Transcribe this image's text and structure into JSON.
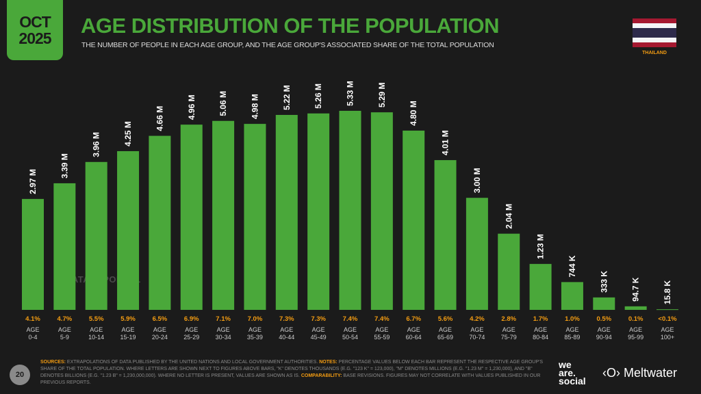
{
  "header": {
    "date_month": "OCT",
    "date_year": "2025",
    "title": "AGE DISTRIBUTION OF THE POPULATION",
    "subtitle": "THE NUMBER OF PEOPLE IN EACH AGE GROUP, AND THE AGE GROUP'S ASSOCIATED SHARE OF THE TOTAL POPULATION",
    "country": "THAILAND",
    "flag_colors": [
      "#a51931",
      "#f4f5f8",
      "#2d2a4a",
      "#f4f5f8",
      "#a51931"
    ]
  },
  "watermark": "DATAREPORTAL",
  "colors": {
    "bar": "#4aa83a",
    "share": "#f39c12",
    "background": "#1b1b1b"
  },
  "chart_data": {
    "type": "bar",
    "categories": [
      "0-4",
      "5-9",
      "10-14",
      "15-19",
      "20-24",
      "25-29",
      "30-34",
      "35-39",
      "40-44",
      "45-49",
      "50-54",
      "55-59",
      "60-64",
      "65-69",
      "70-74",
      "75-79",
      "80-84",
      "85-89",
      "90-94",
      "95-99",
      "100+"
    ],
    "category_prefix": "AGE",
    "values_millions": [
      2.97,
      3.39,
      3.96,
      4.25,
      4.66,
      4.96,
      5.06,
      4.98,
      5.22,
      5.26,
      5.33,
      5.29,
      4.8,
      4.01,
      3.0,
      2.04,
      1.23,
      0.744,
      0.333,
      0.0947,
      0.0158
    ],
    "value_labels": [
      "2.97 M",
      "3.39 M",
      "3.96 M",
      "4.25 M",
      "4.66 M",
      "4.96 M",
      "5.06 M",
      "4.98 M",
      "5.22 M",
      "5.26 M",
      "5.33 M",
      "5.29 M",
      "4.80 M",
      "4.01 M",
      "3.00 M",
      "2.04 M",
      "1.23 M",
      "744 K",
      "333 K",
      "94.7 K",
      "15.8 K"
    ],
    "shares": [
      "4.1%",
      "4.7%",
      "5.5%",
      "5.9%",
      "6.5%",
      "6.9%",
      "7.1%",
      "7.0%",
      "7.3%",
      "7.3%",
      "7.4%",
      "7.4%",
      "6.7%",
      "5.6%",
      "4.2%",
      "2.8%",
      "1.7%",
      "1.0%",
      "0.5%",
      "0.1%",
      "<0.1%"
    ],
    "ylim": [
      0,
      5.33
    ],
    "grid": false
  },
  "footer": {
    "page": "20",
    "sources_label": "SOURCES:",
    "sources_text": " EXTRAPOLATIONS OF DATA PUBLISHED BY THE UNITED NATIONS AND LOCAL GOVERNMENT AUTHORITIES. ",
    "notes_label": "NOTES:",
    "notes_text": " PERCENTAGE VALUES BELOW EACH BAR REPRESENT THE RESPECTIVE AGE GROUP'S SHARE OF THE TOTAL POPULATION. WHERE LETTERS ARE SHOWN NEXT TO FIGURES ABOVE BARS, \"K\" DENOTES THOUSANDS (E.G. \"123 K\" = 123,000), \"M\" DENOTES MILLIONS (E.G. \"1.23 M\" = 1,230,000), AND \"B\" DENOTES BILLIONS (E.G. \"1.23 B\" = 1,230,000,000). WHERE NO LETTER IS PRESENT, VALUES ARE SHOWN AS IS. ",
    "comparability_label": "COMPARABILITY:",
    "comparability_text": " BASE REVISIONS. FIGURES MAY NOT CORRELATE WITH VALUES PUBLISHED IN OUR PREVIOUS REPORTS.",
    "logo1": [
      "we",
      "are.",
      "social"
    ],
    "logo2": "Meltwater"
  }
}
